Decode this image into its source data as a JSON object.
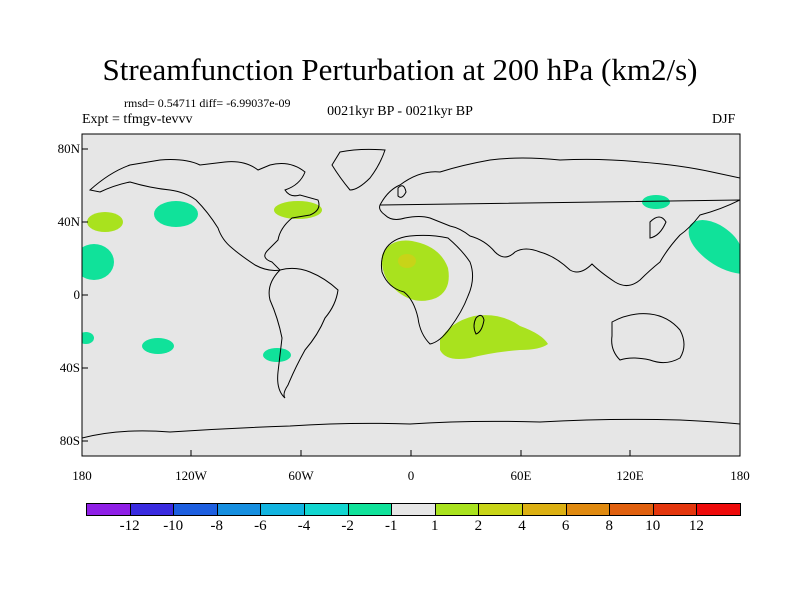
{
  "title": "Streamfunction Perturbation at 200 hPa (km2/s)",
  "stats": "rmsd= 0.54711  diff= -6.99037e-09",
  "experiment": "Expt = tfmgv-tevvv",
  "period": "0021kyr BP - 0021kyr BP",
  "season": "DJF",
  "lat_labels": [
    "80N",
    "40N",
    "0",
    "40S",
    "80S"
  ],
  "lon_labels": [
    "180",
    "120W",
    "60W",
    "0",
    "60E",
    "120E",
    "180"
  ],
  "colorbar": {
    "labels": [
      "-12",
      "-10",
      "-8",
      "-6",
      "-4",
      "-2",
      "-1",
      "1",
      "2",
      "4",
      "6",
      "8",
      "10",
      "12"
    ],
    "colors": [
      "#8f1fe6",
      "#3a2be0",
      "#1d5fe0",
      "#168fe0",
      "#12b4e0",
      "#12d6d0",
      "#10e29a",
      "#e6e6e6",
      "#a9e21e",
      "#c8d418",
      "#dcb012",
      "#e08a10",
      "#e0600e",
      "#e4360d",
      "#ee0a0a"
    ]
  },
  "colors": {
    "land_sea_background": "#e6e6e6",
    "negative_anomaly": "#10e29a",
    "positive_weak": "#a9e21e",
    "positive_strong": "#c8d418"
  }
}
